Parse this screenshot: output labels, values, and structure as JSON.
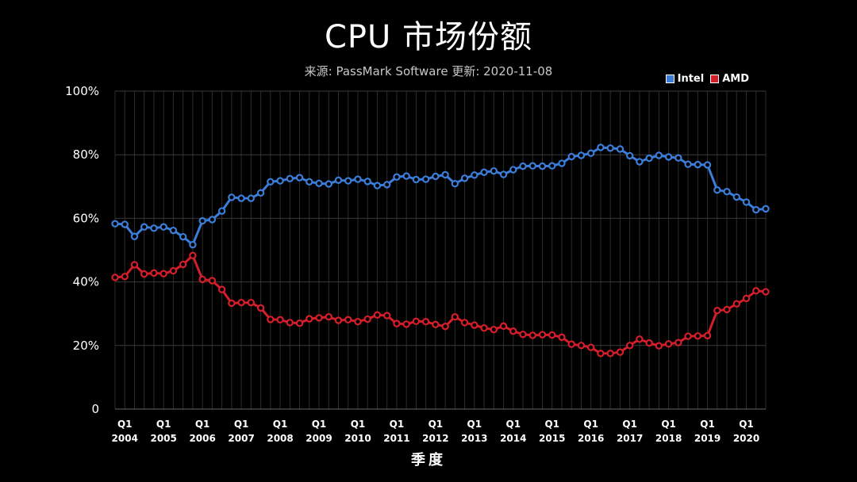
{
  "chart_data": {
    "type": "line",
    "title": "CPU 市场份额",
    "subtitle": "来源: PassMark Software 更新: 2020-11-08",
    "xlabel": "季度",
    "ylabel": "",
    "ylim": [
      0,
      100
    ],
    "y_ticks": [
      "0",
      "20%",
      "40%",
      "60%",
      "80%",
      "100%"
    ],
    "y_tick_values": [
      0,
      20,
      40,
      60,
      80,
      100
    ],
    "grid": true,
    "legend_position": "top-right",
    "x_tick_labels": [
      {
        "q": "Q1",
        "year": "2004",
        "index": 1
      },
      {
        "q": "Q1",
        "year": "2005",
        "index": 5
      },
      {
        "q": "Q1",
        "year": "2006",
        "index": 9
      },
      {
        "q": "Q1",
        "year": "2007",
        "index": 13
      },
      {
        "q": "Q1",
        "year": "2008",
        "index": 17
      },
      {
        "q": "Q1",
        "year": "2009",
        "index": 21
      },
      {
        "q": "Q1",
        "year": "2010",
        "index": 25
      },
      {
        "q": "Q1",
        "year": "2011",
        "index": 29
      },
      {
        "q": "Q1",
        "year": "2012",
        "index": 33
      },
      {
        "q": "Q1",
        "year": "2013",
        "index": 37
      },
      {
        "q": "Q1",
        "year": "2014",
        "index": 41
      },
      {
        "q": "Q1",
        "year": "2015",
        "index": 45
      },
      {
        "q": "Q1",
        "year": "2016",
        "index": 49
      },
      {
        "q": "Q1",
        "year": "2017",
        "index": 53
      },
      {
        "q": "Q1",
        "year": "2018",
        "index": 57
      },
      {
        "q": "Q1",
        "year": "2019",
        "index": 61
      },
      {
        "q": "Q1",
        "year": "2020",
        "index": 65
      }
    ],
    "series": [
      {
        "name": "Intel",
        "color": "#3b7dd8",
        "values": [
          58.3,
          58.1,
          54.3,
          57.3,
          56.9,
          57.3,
          56.2,
          54.2,
          51.7,
          59.2,
          59.6,
          62.3,
          66.6,
          66.3,
          66.3,
          68.0,
          71.5,
          71.8,
          72.5,
          72.8,
          71.5,
          71.0,
          70.8,
          72.0,
          71.8,
          72.3,
          71.6,
          70.3,
          70.6,
          73.0,
          73.3,
          72.2,
          72.3,
          73.2,
          73.7,
          70.9,
          72.6,
          73.6,
          74.5,
          74.9,
          73.8,
          75.3,
          76.4,
          76.5,
          76.4,
          76.5,
          77.3,
          79.4,
          79.8,
          80.5,
          82.3,
          82.1,
          81.8,
          79.7,
          77.8,
          78.9,
          79.8,
          79.3,
          79.0,
          77.0,
          76.9,
          76.8,
          68.9,
          68.4,
          66.7,
          65.1,
          62.7,
          63.0
        ]
      },
      {
        "name": "AMD",
        "color": "#d41e2a",
        "values": [
          41.4,
          41.7,
          45.4,
          42.5,
          42.8,
          42.6,
          43.5,
          45.5,
          48.3,
          40.8,
          40.4,
          37.6,
          33.3,
          33.5,
          33.5,
          31.8,
          28.2,
          28.1,
          27.2,
          27.0,
          28.4,
          28.7,
          29.0,
          27.9,
          28.1,
          27.5,
          28.3,
          29.6,
          29.4,
          26.9,
          26.7,
          27.6,
          27.5,
          26.6,
          26.0,
          29.0,
          27.2,
          26.4,
          25.5,
          25.0,
          26.1,
          24.5,
          23.5,
          23.2,
          23.4,
          23.3,
          22.6,
          20.4,
          20.0,
          19.4,
          17.5,
          17.5,
          17.9,
          20.0,
          22.0,
          20.8,
          19.9,
          20.5,
          20.9,
          22.9,
          23.0,
          23.1,
          31.0,
          31.3,
          33.1,
          34.8,
          37.2,
          36.9
        ]
      }
    ]
  }
}
